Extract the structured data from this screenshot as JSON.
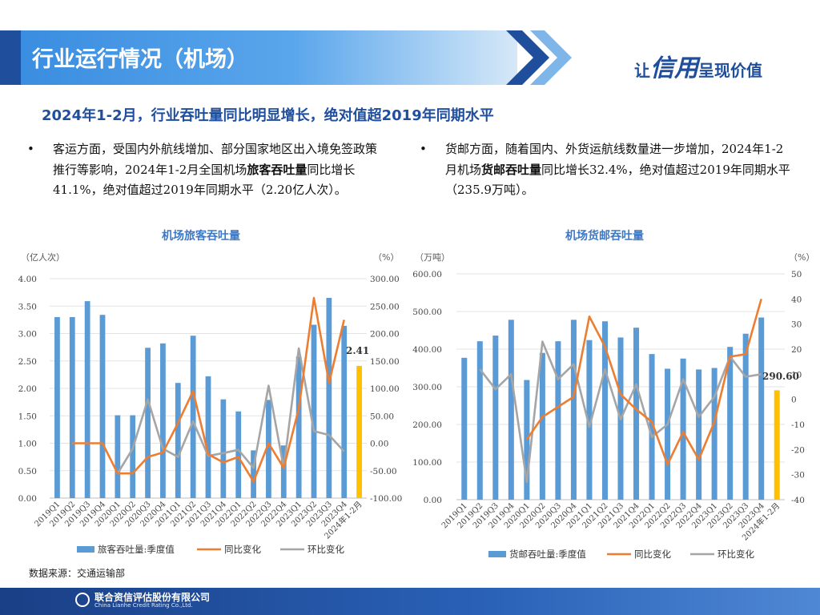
{
  "header": {
    "title": "行业运行情况（机场）",
    "slogan_prefix": "让",
    "slogan_big": "信用",
    "slogan_suffix": "呈现价值"
  },
  "subtitle": "2024年1-2月，行业吞吐量同比明显增长，绝对值超2019年同期水平",
  "bullets": {
    "left": {
      "marker": "•",
      "part1": "客运方面，受国内外航线增加、部分国家地区出入境免签政策推行等影响，2024年1-2月全国机场",
      "bold": "旅客吞吐量",
      "part2": "同比增长41.1%，绝对值超过2019年同期水平（2.20亿人次）。"
    },
    "right": {
      "marker": "•",
      "part1": "货邮方面，随着国内、外货运航线数量进一步增加，2024年1-2月机场",
      "bold": "货邮吞吐量",
      "part2": "同比增长32.4%，绝对值超过2019年同期水平（235.9万吨）。"
    }
  },
  "source": "数据来源：交通运输部",
  "footer": {
    "company": "联合资信评估股份有限公司",
    "company_en": "China Lianhe Credit Rating Co.,Ltd."
  },
  "colors": {
    "bar": "#5b9bd5",
    "bar_highlight": "#ffc000",
    "yoy": "#ed7d31",
    "qoq": "#a5a5a5",
    "accent": "#1f4e9c"
  },
  "chart_data": [
    {
      "type": "bar",
      "title": "机场旅客吞吐量",
      "ylabel": "（亿人次）",
      "y2label": "（%）",
      "categories": [
        "2019Q1",
        "2019Q2",
        "2019Q3",
        "2019Q4",
        "2020Q1",
        "2020Q2",
        "2020Q3",
        "2020Q4",
        "2021Q1",
        "2021Q2",
        "2021Q3",
        "2021Q4",
        "2022Q1",
        "2022Q2",
        "2022Q3",
        "2022Q4",
        "2023Q1",
        "2023Q2",
        "2023Q3",
        "2023Q4",
        "2024年1-2月"
      ],
      "ylim": [
        0,
        4
      ],
      "yticks": [
        "0.00",
        "0.50",
        "1.00",
        "1.50",
        "2.00",
        "2.50",
        "3.00",
        "3.50",
        "4.00"
      ],
      "y2lim": [
        -100,
        300
      ],
      "y2ticks": [
        "-100.00",
        "-50.00",
        "0.00",
        "50.00",
        "100.00",
        "150.00",
        "200.00",
        "250.00",
        "300.00"
      ],
      "series": [
        {
          "name": "旅客吞吐量:季度值",
          "axis": "left",
          "kind": "bar",
          "values": [
            3.3,
            3.3,
            3.59,
            3.34,
            1.51,
            1.51,
            2.74,
            2.82,
            2.1,
            2.96,
            2.22,
            1.8,
            1.58,
            0.87,
            1.79,
            0.96,
            2.58,
            3.16,
            3.65,
            3.14,
            2.41
          ]
        },
        {
          "name": "同比变化",
          "axis": "right",
          "kind": "line",
          "values": [
            null,
            0,
            0,
            0,
            -55,
            -55,
            -25,
            -17,
            37,
            95,
            -20,
            -35,
            -25,
            -70,
            0,
            -45,
            63,
            265,
            110,
            225,
            null
          ]
        },
        {
          "name": "环比变化",
          "axis": "right",
          "kind": "line",
          "values": [
            null,
            null,
            null,
            null,
            -55,
            -10,
            80,
            -10,
            -25,
            40,
            -23,
            -18,
            -12,
            -45,
            105,
            -45,
            173,
            22,
            15,
            -15,
            null
          ]
        }
      ],
      "annotations": [
        "2.41"
      ],
      "legend": "bottom"
    },
    {
      "type": "bar",
      "title": "机场货邮吞吐量",
      "ylabel": "（万吨）",
      "y2label": "（%）",
      "categories": [
        "2019Q1",
        "2019Q2",
        "2019Q3",
        "2019Q4",
        "2020Q1",
        "2020Q2",
        "2020Q3",
        "2020Q4",
        "2021Q1",
        "2021Q2",
        "2021Q3",
        "2021Q4",
        "2022Q1",
        "2022Q2",
        "2022Q3",
        "2022Q4",
        "2023Q1",
        "2023Q2",
        "2023Q3",
        "2023Q4",
        "2024年1-2月"
      ],
      "ylim": [
        0,
        600
      ],
      "yticks": [
        "0.00",
        "100.00",
        "200.00",
        "300.00",
        "400.00",
        "500.00",
        "600.00"
      ],
      "y2lim": [
        -40,
        50
      ],
      "y2ticks": [
        "-40",
        "-30",
        "-20",
        "-10",
        "0",
        "10",
        "20",
        "30",
        "40",
        "50"
      ],
      "series": [
        {
          "name": "货邮吞吐量:季度值",
          "axis": "left",
          "kind": "bar",
          "values": [
            377,
            421,
            436,
            478,
            318,
            390,
            421,
            478,
            424,
            474,
            431,
            457,
            387,
            348,
            375,
            346,
            350,
            406,
            441,
            484,
            290.6
          ]
        },
        {
          "name": "同比变化",
          "axis": "right",
          "kind": "line",
          "values": [
            null,
            null,
            null,
            null,
            -16,
            -7,
            -3,
            1,
            33,
            21,
            2,
            -4,
            -9,
            -26,
            -13,
            -24,
            -9,
            17,
            18,
            40,
            null
          ]
        },
        {
          "name": "环比变化",
          "axis": "right",
          "kind": "line",
          "values": [
            null,
            12,
            4,
            10,
            -33,
            23,
            8,
            14,
            -11,
            12,
            -8,
            6,
            -15,
            -10,
            8,
            -7,
            1,
            17,
            9,
            10,
            null
          ]
        }
      ],
      "annotations": [
        "290.60"
      ],
      "legend": "bottom"
    }
  ]
}
